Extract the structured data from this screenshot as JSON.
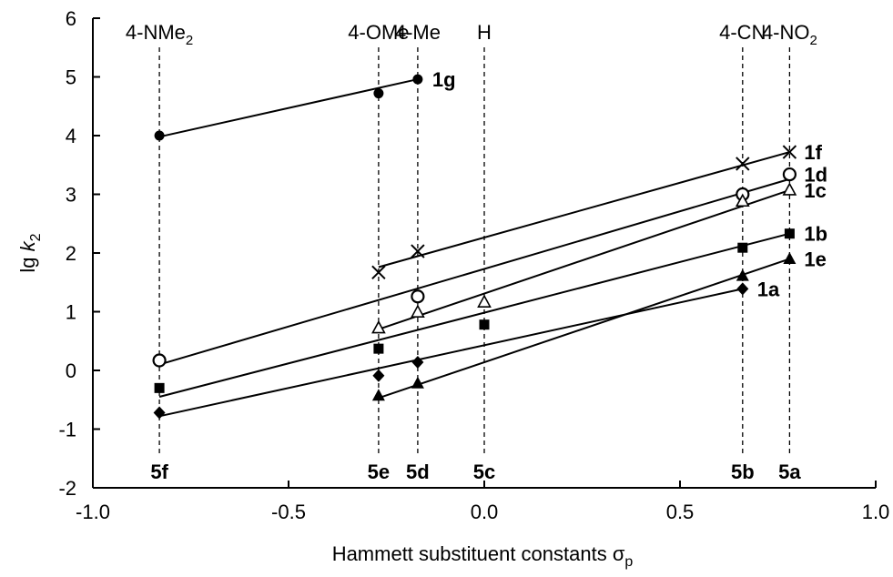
{
  "chart_data": {
    "type": "scatter",
    "xlabel": "Hammett substituent constants σp",
    "ylabel": "lg k2",
    "xlim": [
      -1.0,
      1.0
    ],
    "ylim": [
      -2,
      6
    ],
    "x_ticks": [
      "-1.0",
      "-0.5",
      "0.0",
      "0.5",
      "1.0"
    ],
    "y_ticks": [
      "-2",
      "-1",
      "0",
      "1",
      "2",
      "3",
      "4",
      "5",
      "6"
    ],
    "grid": false,
    "substituents": [
      {
        "sigma": -0.83,
        "name": "4-NMe2",
        "compound": "5f"
      },
      {
        "sigma": -0.27,
        "name": "4-OMe",
        "compound": "5e"
      },
      {
        "sigma": -0.17,
        "name": "4-Me",
        "compound": "5d"
      },
      {
        "sigma": 0.0,
        "name": "H",
        "compound": "5c"
      },
      {
        "sigma": 0.66,
        "name": "4-CN",
        "compound": "5b"
      },
      {
        "sigma": 0.78,
        "name": "4-NO2",
        "compound": "5a"
      }
    ],
    "series": [
      {
        "name": "1g",
        "marker": "circle-filled",
        "points": [
          [
            -0.83,
            4.0
          ],
          [
            -0.27,
            4.72
          ],
          [
            -0.17,
            4.96
          ]
        ],
        "fit": [
          [
            -0.83,
            3.98
          ],
          [
            -0.17,
            4.96
          ]
        ]
      },
      {
        "name": "1f",
        "marker": "x",
        "points": [
          [
            -0.27,
            1.67
          ],
          [
            -0.17,
            2.03
          ],
          [
            0.66,
            3.52
          ],
          [
            0.78,
            3.72
          ]
        ],
        "fit": [
          [
            -0.27,
            1.76
          ],
          [
            0.78,
            3.72
          ]
        ]
      },
      {
        "name": "1d",
        "marker": "circle-open",
        "points": [
          [
            -0.83,
            0.17
          ],
          [
            -0.17,
            1.26
          ],
          [
            0.66,
            3.0
          ],
          [
            0.78,
            3.34
          ]
        ],
        "fit": [
          [
            -0.83,
            0.1
          ],
          [
            0.78,
            3.26
          ]
        ]
      },
      {
        "name": "1c",
        "marker": "triangle-open",
        "points": [
          [
            -0.27,
            0.72
          ],
          [
            -0.17,
            0.99
          ],
          [
            0.0,
            1.16
          ],
          [
            0.66,
            2.88
          ],
          [
            0.78,
            3.07
          ]
        ],
        "fit": [
          [
            -0.27,
            0.7
          ],
          [
            0.78,
            3.07
          ]
        ]
      },
      {
        "name": "1b",
        "marker": "square-filled",
        "points": [
          [
            -0.83,
            -0.3
          ],
          [
            -0.27,
            0.37
          ],
          [
            0.0,
            0.78
          ],
          [
            0.66,
            2.09
          ],
          [
            0.78,
            2.33
          ]
        ],
        "fit": [
          [
            -0.83,
            -0.45
          ],
          [
            0.78,
            2.33
          ]
        ]
      },
      {
        "name": "1e",
        "marker": "triangle-filled",
        "points": [
          [
            -0.27,
            -0.43
          ],
          [
            -0.17,
            -0.22
          ],
          [
            0.66,
            1.61
          ],
          [
            0.78,
            1.9
          ]
        ],
        "fit": [
          [
            -0.27,
            -0.47
          ],
          [
            0.78,
            1.9
          ]
        ]
      },
      {
        "name": "1a",
        "marker": "diamond-filled",
        "points": [
          [
            -0.83,
            -0.72
          ],
          [
            -0.27,
            -0.09
          ],
          [
            -0.17,
            0.14
          ],
          [
            0.66,
            1.39
          ]
        ],
        "fit": [
          [
            -0.83,
            -0.78
          ],
          [
            0.66,
            1.39
          ]
        ]
      }
    ]
  }
}
